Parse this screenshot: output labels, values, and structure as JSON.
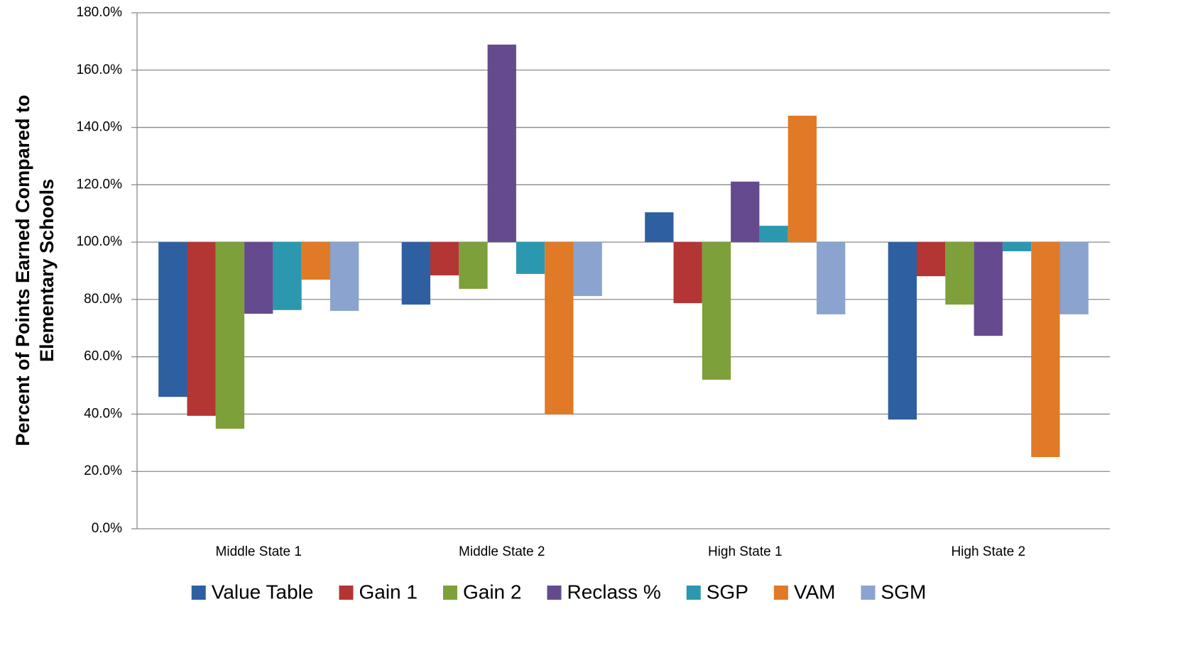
{
  "chart_data": {
    "type": "bar",
    "y_label": [
      "Percent of Points Earned Compared to",
      "Elementary Schools"
    ],
    "categories": [
      "Middle State 1",
      "Middle State 2",
      "High State 1",
      "High State 2"
    ],
    "baseline": 100,
    "series": [
      {
        "name": "Value Table",
        "color": "#2e5fa0",
        "values": [
          46.0,
          78.2,
          110.4,
          38.1
        ]
      },
      {
        "name": "Gain 1",
        "color": "#b33634",
        "values": [
          39.4,
          88.4,
          78.7,
          88.1
        ]
      },
      {
        "name": "Gain 2",
        "color": "#7da03a",
        "values": [
          34.9,
          83.7,
          52.0,
          78.2
        ]
      },
      {
        "name": "Reclass %",
        "color": "#654a8f",
        "values": [
          75.0,
          168.9,
          121.1,
          67.3
        ]
      },
      {
        "name": "SGP",
        "color": "#2b98b0",
        "values": [
          76.3,
          88.9,
          105.7,
          96.8
        ]
      },
      {
        "name": "VAM",
        "color": "#e07a26",
        "values": [
          86.9,
          39.9,
          144.1,
          25.0
        ]
      },
      {
        "name": "SGM",
        "color": "#8ba3cf",
        "values": [
          76.0,
          81.2,
          74.8,
          74.8
        ]
      }
    ],
    "ylim": [
      0,
      180
    ],
    "yticks": [
      {
        "value": 0,
        "label": "0.0%"
      },
      {
        "value": 20,
        "label": "20.0%"
      },
      {
        "value": 40,
        "label": "40.0%"
      },
      {
        "value": 60,
        "label": "60.0%"
      },
      {
        "value": 80,
        "label": "80.0%"
      },
      {
        "value": 100,
        "label": "100.0%"
      },
      {
        "value": 120,
        "label": "120.0%"
      },
      {
        "value": 140,
        "label": "140.0%"
      },
      {
        "value": 160,
        "label": "160.0%"
      },
      {
        "value": 180,
        "label": "180.0%"
      }
    ],
    "grid": true,
    "legend": "bottom"
  }
}
